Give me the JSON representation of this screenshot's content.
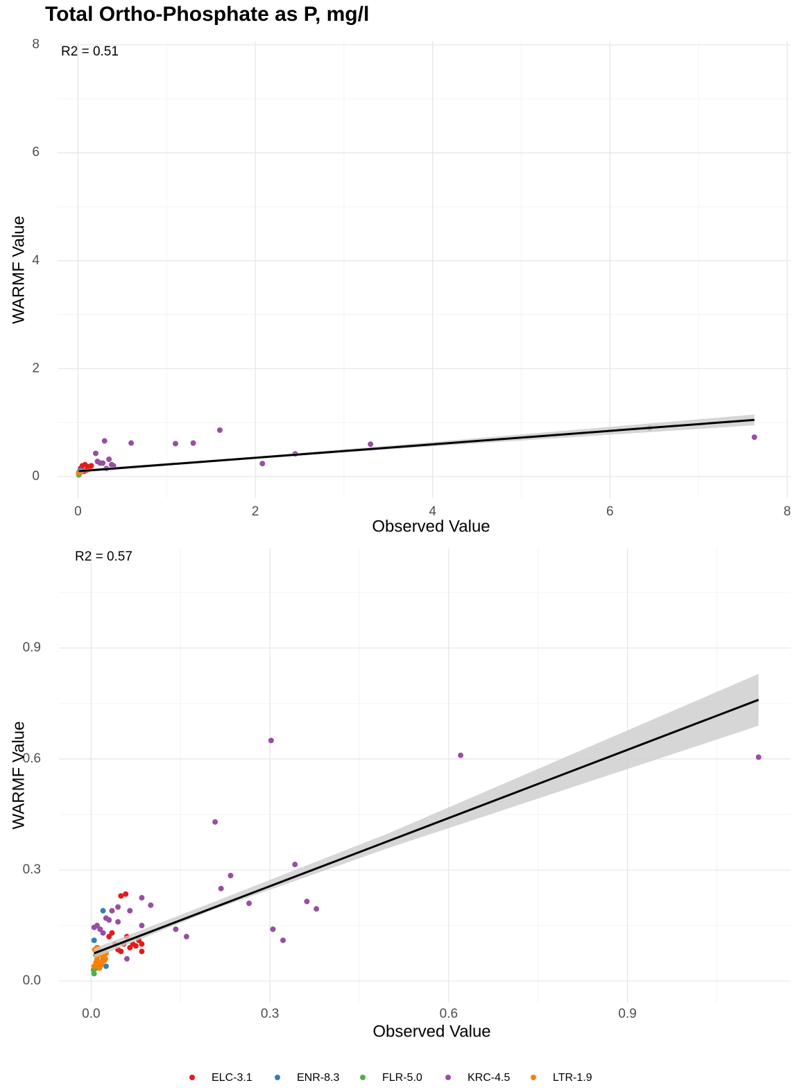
{
  "chart_data": [
    {
      "type": "scatter",
      "title": "Total Ortho-Phosphate as P, mg/l",
      "annotation": "R2 = 0.51",
      "x_label": "Observed Value",
      "y_label": "WARMF Value",
      "xlim": [
        -0.23,
        8.04
      ],
      "ylim": [
        -0.4,
        8.06
      ],
      "xticks": [
        0,
        2,
        4,
        6,
        8
      ],
      "yticks": [
        0,
        2,
        4,
        6,
        8
      ],
      "grid": true,
      "minor_grid": true,
      "series": [
        {
          "color": "#e41a1c",
          "x": [
            0.05,
            0.08,
            0.12,
            0.1,
            0.15,
            0.03,
            0.07,
            0.13
          ],
          "values": [
            0.2,
            0.22,
            0.18,
            0.12,
            0.2,
            0.15,
            0.1,
            0.14
          ]
        },
        {
          "color": "#377eb8",
          "x": [
            0.01,
            0.02,
            0.01,
            0.03
          ],
          "values": [
            0.05,
            0.1,
            0.08,
            0.12
          ]
        },
        {
          "color": "#4daf4a",
          "x": [
            0.01,
            0.02
          ],
          "values": [
            0.03,
            0.06
          ]
        },
        {
          "color": "#984ea3",
          "x": [
            0.2,
            0.22,
            0.28,
            0.3,
            0.32,
            0.35,
            0.38,
            0.4,
            0.6,
            1.1,
            1.3,
            1.6,
            2.08,
            2.45,
            3.3,
            6.45,
            7.63,
            0.25
          ],
          "values": [
            0.43,
            0.28,
            0.25,
            0.66,
            0.15,
            0.32,
            0.22,
            0.2,
            0.62,
            0.61,
            0.62,
            0.86,
            0.24,
            0.42,
            0.6,
            0.9,
            0.73,
            0.25
          ]
        },
        {
          "color": "#ff7f00",
          "x": [
            0.02,
            0.03,
            0.01
          ],
          "values": [
            0.07,
            0.09,
            0.06
          ]
        }
      ],
      "fit": {
        "color": "#000000",
        "band_color": "#cccccc",
        "x": [
          0.01,
          2,
          4,
          7.63
        ],
        "y": [
          0.1,
          0.348,
          0.597,
          1.05
        ],
        "lower": [
          0.07,
          0.33,
          0.56,
          0.95
        ],
        "upper": [
          0.13,
          0.37,
          0.64,
          1.15
        ]
      }
    },
    {
      "type": "scatter",
      "annotation": "R2 = 0.57",
      "x_label": "Observed Value",
      "y_label": "WARMF Value",
      "xlim": [
        -0.054,
        1.174
      ],
      "ylim": [
        -0.058,
        1.17
      ],
      "xticks": [
        {
          "value": 0,
          "label": "0.0"
        },
        0.3,
        0.6,
        0.9
      ],
      "yticks": [
        {
          "value": 0,
          "label": "0.0"
        },
        0.3,
        0.6,
        0.9
      ],
      "grid": true,
      "minor_grid": true,
      "legend": "bottom",
      "series": [
        {
          "name": "ELC-3.1",
          "color": "#e41a1c",
          "x": [
            0.05,
            0.058,
            0.04,
            0.06,
            0.07,
            0.08,
            0.085,
            0.085,
            0.05,
            0.065,
            0.03,
            0.045,
            0.075,
            0.055,
            0.035
          ],
          "values": [
            0.23,
            0.235,
            0.1,
            0.12,
            0.1,
            0.11,
            0.08,
            0.1,
            0.08,
            0.09,
            0.12,
            0.085,
            0.095,
            0.1,
            0.13
          ]
        },
        {
          "name": "ENR-8.3",
          "color": "#377eb8",
          "x": [
            0.02,
            0.005,
            0.01,
            0.015,
            0.025,
            0.008,
            0.02
          ],
          "values": [
            0.19,
            0.11,
            0.09,
            0.04,
            0.04,
            0.07,
            0.06
          ]
        },
        {
          "name": "FLR-5.0",
          "color": "#4daf4a",
          "x": [
            0.005,
            0.004,
            0.01
          ],
          "values": [
            0.02,
            0.03,
            0.035
          ]
        },
        {
          "name": "KRC-4.5",
          "color": "#984ea3",
          "x": [
            1.12,
            0.62,
            0.302,
            0.208,
            0.342,
            0.234,
            0.218,
            0.265,
            0.362,
            0.378,
            0.305,
            0.322,
            0.142,
            0.16,
            0.085,
            0.1,
            0.045,
            0.035,
            0.005,
            0.015,
            0.025,
            0.03,
            0.065,
            0.085,
            0.045,
            0.01,
            0.02,
            0.06
          ],
          "values": [
            0.605,
            0.61,
            0.65,
            0.43,
            0.315,
            0.285,
            0.25,
            0.21,
            0.215,
            0.195,
            0.14,
            0.11,
            0.14,
            0.12,
            0.225,
            0.205,
            0.2,
            0.19,
            0.145,
            0.14,
            0.17,
            0.165,
            0.19,
            0.15,
            0.16,
            0.15,
            0.13,
            0.06
          ]
        },
        {
          "name": "LTR-1.9",
          "color": "#ff7f00",
          "x": [
            0.005,
            0.008,
            0.01,
            0.012,
            0.015,
            0.018,
            0.02,
            0.022,
            0.025,
            0.006,
            0.014,
            0.017,
            0.011,
            0.024,
            0.009
          ],
          "values": [
            0.04,
            0.05,
            0.06,
            0.07,
            0.05,
            0.08,
            0.065,
            0.055,
            0.075,
            0.085,
            0.035,
            0.045,
            0.09,
            0.06,
            0.075
          ]
        }
      ],
      "fit": {
        "color": "#000000",
        "band_color": "#cccccc",
        "x": [
          0.005,
          0.2,
          0.5,
          1.12
        ],
        "y": [
          0.075,
          0.195,
          0.379,
          0.76
        ],
        "lower": [
          0.062,
          0.19,
          0.36,
          0.69
        ],
        "upper": [
          0.088,
          0.21,
          0.4,
          0.83
        ]
      }
    }
  ]
}
